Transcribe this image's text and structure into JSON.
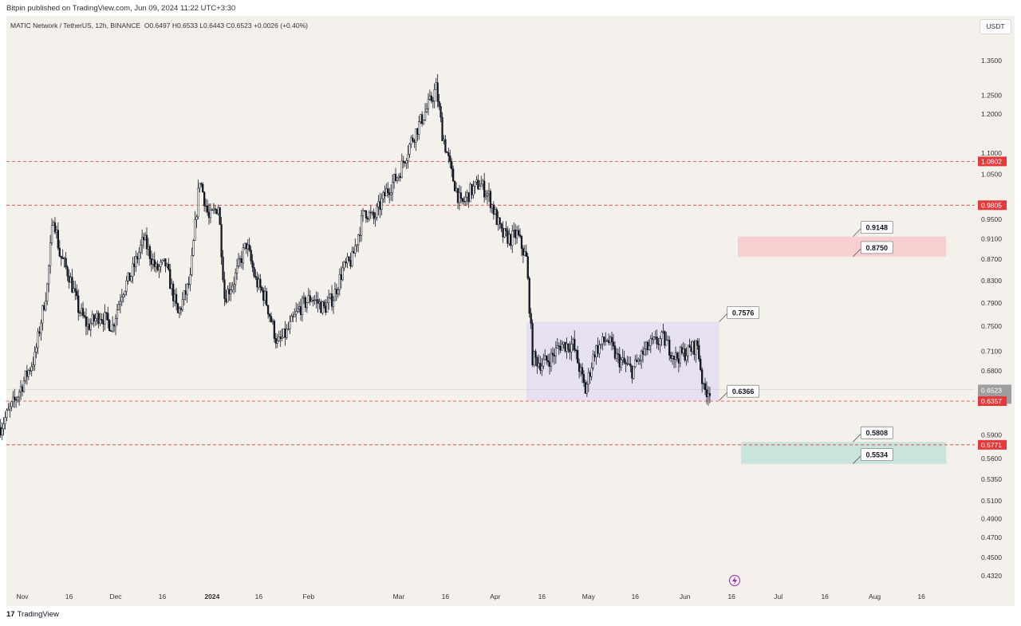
{
  "header": {
    "published": "Bitpin published on TradingView.com, Jun 09, 2024 11:22 UTC+3:30",
    "symbol": "MATIC Network / TetherUS, 12h, BINANCE",
    "ohlc": "O0.6497 H0.6533 L0.6443 C0.6523 +0.0026 (+0.40%)",
    "currency_button": "USDT"
  },
  "footer": {
    "logo_icon": "tradingview-logo-icon",
    "brand": "TradingView"
  },
  "colors": {
    "background": "#f4f0eb",
    "candle": "#131722",
    "red_line": "#e5393b",
    "red_zone": "#f7cfd0",
    "green_zone": "#c9e4dd",
    "range_box": "#e6e0f2",
    "flash_icon": "#9c27b0"
  },
  "chart_data": {
    "type": "candlestick",
    "symbol": "MATIC Network / TetherUS",
    "timeframe": "12h",
    "exchange": "BINANCE",
    "last": {
      "open": 0.6497,
      "high": 0.6533,
      "low": 0.6443,
      "close": 0.6523,
      "change": "+0.0026 (+0.40%)"
    },
    "x_axis": {
      "ticks": [
        {
          "label": "Nov",
          "date": "2023-11-01"
        },
        {
          "label": "16",
          "date": "2023-11-16"
        },
        {
          "label": "Dec",
          "date": "2023-12-01"
        },
        {
          "label": "16",
          "date": "2023-12-16"
        },
        {
          "label": "2024",
          "date": "2024-01-01",
          "bold": true
        },
        {
          "label": "16",
          "date": "2024-01-16"
        },
        {
          "label": "Feb",
          "date": "2024-02-01"
        },
        {
          "label": "Mar",
          "date": "2024-03-01"
        },
        {
          "label": "16",
          "date": "2024-03-16"
        },
        {
          "label": "Apr",
          "date": "2024-04-01"
        },
        {
          "label": "16",
          "date": "2024-04-16"
        },
        {
          "label": "May",
          "date": "2024-05-01"
        },
        {
          "label": "16",
          "date": "2024-05-16"
        },
        {
          "label": "Jun",
          "date": "2024-06-01"
        },
        {
          "label": "16",
          "date": "2024-06-16"
        },
        {
          "label": "Jul",
          "date": "2024-07-01"
        },
        {
          "label": "16",
          "date": "2024-07-16"
        },
        {
          "label": "Aug",
          "date": "2024-08-01"
        },
        {
          "label": "16",
          "date": "2024-08-16"
        }
      ]
    },
    "y_axis": {
      "scale": "log",
      "ticks": [
        "1.3500",
        "1.2500",
        "1.2000",
        "1.1000",
        "1.0500",
        "0.9500",
        "0.9100",
        "0.8700",
        "0.8300",
        "0.7900",
        "0.7500",
        "0.7100",
        "0.6800",
        "0.5900",
        "0.5600",
        "0.5350",
        "0.5100",
        "0.4900",
        "0.4700",
        "0.4500",
        "0.4320"
      ]
    },
    "price_badges": [
      {
        "label": "1.0802",
        "value": 1.0802,
        "style": "red"
      },
      {
        "label": "0.9805",
        "value": 0.9805,
        "style": "red"
      },
      {
        "label": "0.6523",
        "sub": "04:07:04",
        "value": 0.6523,
        "style": "grey"
      },
      {
        "label": "0.6357",
        "value": 0.6357,
        "style": "red"
      },
      {
        "label": "0.5771",
        "value": 0.5771,
        "style": "red"
      }
    ],
    "horizontal_lines": [
      1.0802,
      0.9805,
      0.6357,
      0.5771
    ],
    "zones": [
      {
        "kind": "resistance",
        "from": "2024-06-18",
        "to": "2024-08-24",
        "low": 0.875,
        "high": 0.9148,
        "color": "red"
      },
      {
        "kind": "range",
        "from": "2024-04-11",
        "to": "2024-06-12",
        "low": 0.6366,
        "high": 0.7576,
        "color": "purple"
      },
      {
        "kind": "support",
        "from": "2024-06-19",
        "to": "2024-08-24",
        "low": 0.5534,
        "high": 0.5808,
        "color": "green"
      }
    ],
    "callouts": [
      {
        "label": "0.9148",
        "value": 0.9148,
        "date": "2024-07-25"
      },
      {
        "label": "0.8750",
        "value": 0.875,
        "date": "2024-07-25"
      },
      {
        "label": "0.7576",
        "value": 0.7576,
        "date": "2024-06-12"
      },
      {
        "label": "0.6366",
        "value": 0.6366,
        "date": "2024-06-12"
      },
      {
        "label": "0.5808",
        "value": 0.5808,
        "date": "2024-07-25"
      },
      {
        "label": "0.5534",
        "value": 0.5534,
        "date": "2024-07-25"
      }
    ],
    "price_path": [
      [
        "2023-10-25",
        0.6
      ],
      [
        "2023-10-30",
        0.64
      ],
      [
        "2023-11-05",
        0.7
      ],
      [
        "2023-11-09",
        0.82
      ],
      [
        "2023-11-11",
        0.96
      ],
      [
        "2023-11-13",
        0.88
      ],
      [
        "2023-11-16",
        0.84
      ],
      [
        "2023-11-19",
        0.78
      ],
      [
        "2023-11-22",
        0.75
      ],
      [
        "2023-11-26",
        0.77
      ],
      [
        "2023-11-30",
        0.75
      ],
      [
        "2023-12-03",
        0.81
      ],
      [
        "2023-12-06",
        0.84
      ],
      [
        "2023-12-10",
        0.91
      ],
      [
        "2023-12-14",
        0.85
      ],
      [
        "2023-12-17",
        0.86
      ],
      [
        "2023-12-21",
        0.77
      ],
      [
        "2023-12-25",
        0.83
      ],
      [
        "2023-12-28",
        1.04
      ],
      [
        "2023-12-31",
        0.95
      ],
      [
        "2024-01-03",
        0.98
      ],
      [
        "2024-01-05",
        0.8
      ],
      [
        "2024-01-08",
        0.83
      ],
      [
        "2024-01-12",
        0.9
      ],
      [
        "2024-01-15",
        0.83
      ],
      [
        "2024-01-18",
        0.8
      ],
      [
        "2024-01-22",
        0.72
      ],
      [
        "2024-01-25",
        0.74
      ],
      [
        "2024-01-29",
        0.78
      ],
      [
        "2024-02-02",
        0.8
      ],
      [
        "2024-02-06",
        0.78
      ],
      [
        "2024-02-09",
        0.8
      ],
      [
        "2024-02-12",
        0.85
      ],
      [
        "2024-02-15",
        0.87
      ],
      [
        "2024-02-19",
        0.97
      ],
      [
        "2024-02-22",
        0.95
      ],
      [
        "2024-02-26",
        1.01
      ],
      [
        "2024-03-01",
        1.05
      ],
      [
        "2024-03-05",
        1.13
      ],
      [
        "2024-03-08",
        1.18
      ],
      [
        "2024-03-11",
        1.23
      ],
      [
        "2024-03-13",
        1.27
      ],
      [
        "2024-03-15",
        1.15
      ],
      [
        "2024-03-18",
        1.05
      ],
      [
        "2024-03-21",
        0.98
      ],
      [
        "2024-03-24",
        1.01
      ],
      [
        "2024-03-27",
        1.03
      ],
      [
        "2024-03-30",
        1.0
      ],
      [
        "2024-04-03",
        0.92
      ],
      [
        "2024-04-06",
        0.91
      ],
      [
        "2024-04-08",
        0.92
      ],
      [
        "2024-04-11",
        0.87
      ],
      [
        "2024-04-13",
        0.7
      ],
      [
        "2024-04-16",
        0.69
      ],
      [
        "2024-04-19",
        0.7
      ],
      [
        "2024-04-22",
        0.72
      ],
      [
        "2024-04-26",
        0.72
      ],
      [
        "2024-04-30",
        0.65
      ],
      [
        "2024-05-03",
        0.71
      ],
      [
        "2024-05-07",
        0.73
      ],
      [
        "2024-05-10",
        0.7
      ],
      [
        "2024-05-15",
        0.68
      ],
      [
        "2024-05-19",
        0.71
      ],
      [
        "2024-05-21",
        0.72
      ],
      [
        "2024-05-25",
        0.73
      ],
      [
        "2024-05-29",
        0.7
      ],
      [
        "2024-06-02",
        0.71
      ],
      [
        "2024-06-05",
        0.72
      ],
      [
        "2024-06-07",
        0.65
      ],
      [
        "2024-06-09",
        0.6523
      ]
    ]
  }
}
